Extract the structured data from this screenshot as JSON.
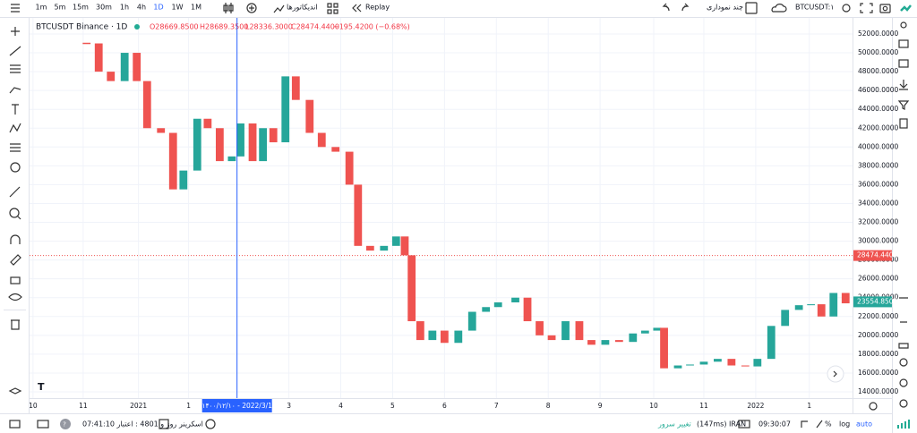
{
  "toolbar": {
    "intervals": [
      "1m",
      "5m",
      "15m",
      "30m",
      "1h",
      "4h",
      "1D",
      "1W",
      "1M"
    ],
    "indicators": "اندیکاتورها",
    "replay": "Replay",
    "multi_chart": "چند نموداری",
    "symbol": "BTCUSDT:۱"
  },
  "chart_data": {
    "type": "candlestick",
    "symbol": "BTCUSDT Binance · 1D",
    "legend": {
      "open": "O28669.8500",
      "high": "H28689.3500",
      "low": "L28336.3000",
      "close": "C28474.4400",
      "change": "−195.4200 (−0.68%)"
    },
    "x": [
      33,
      40,
      47,
      55,
      62,
      68,
      76,
      83,
      89,
      97,
      103,
      110,
      117,
      122,
      129,
      135,
      141,
      148,
      154,
      162,
      169,
      177,
      185,
      190,
      197,
      205,
      212,
      217,
      221,
      226,
      233,
      240,
      248,
      256,
      264,
      271,
      281,
      288,
      295,
      302,
      310,
      318,
      325,
      333,
      341,
      349,
      356,
      363,
      367,
      375,
      382,
      390,
      398,
      406,
      414,
      421,
      429,
      437,
      445,
      452,
      458,
      465,
      472
    ],
    "close": [
      51000,
      48000,
      47000,
      50000,
      47000,
      42000,
      41500,
      35500,
      37500,
      43000,
      42000,
      38500,
      39000,
      42500,
      38500,
      42000,
      40500,
      47500,
      45000,
      41500,
      40000,
      39500,
      36000,
      29500,
      29000,
      29500,
      30500,
      28500,
      21500,
      19500,
      20500,
      19200,
      20500,
      22500,
      23000,
      23500,
      24000,
      21500,
      20000,
      19500,
      21500,
      19500,
      19000,
      19500,
      19300,
      20200,
      20500,
      20800,
      16500,
      16800,
      16900,
      17200,
      17500,
      16800,
      16700,
      17500,
      21000,
      22700,
      23200,
      23300,
      22000,
      24500,
      23400
    ],
    "up_color": "#26a69a",
    "down_color": "#ef5350",
    "xlim": [
      0,
      476
    ],
    "xticks": [
      {
        "value": 2,
        "label": "10"
      },
      {
        "value": 31,
        "label": "11"
      },
      {
        "value": 63,
        "label": "2021"
      },
      {
        "value": 92,
        "label": "1"
      },
      {
        "value": 150,
        "label": "3"
      },
      {
        "value": 180,
        "label": "4"
      },
      {
        "value": 210,
        "label": "5"
      },
      {
        "value": 240,
        "label": "6"
      },
      {
        "value": 270,
        "label": "7"
      },
      {
        "value": 300,
        "label": "8"
      },
      {
        "value": 330,
        "label": "9"
      },
      {
        "value": 361,
        "label": "10"
      },
      {
        "value": 390,
        "label": "11"
      },
      {
        "value": 420,
        "label": "2022"
      },
      {
        "value": 451,
        "label": "1"
      }
    ],
    "ylim": [
      13334,
      53710
    ],
    "yticks": [
      {
        "value": 14000,
        "label": "14000.0000"
      },
      {
        "value": 16000,
        "label": "16000.0000"
      },
      {
        "value": 18000,
        "label": "18000.0000"
      },
      {
        "value": 20000,
        "label": "20000.0000"
      },
      {
        "value": 22000,
        "label": "22000.0000"
      },
      {
        "value": 24000,
        "label": "24000.0000"
      },
      {
        "value": 26000,
        "label": "26000.0000"
      },
      {
        "value": 28000,
        "label": "28000.0000"
      },
      {
        "value": 30000,
        "label": "30000.0000"
      },
      {
        "value": 32000,
        "label": "32000.0000"
      },
      {
        "value": 34000,
        "label": "34000.0000"
      },
      {
        "value": 36000,
        "label": "36000.0000"
      },
      {
        "value": 38000,
        "label": "38000.0000"
      },
      {
        "value": 40000,
        "label": "40000.0000"
      },
      {
        "value": 42000,
        "label": "42000.0000"
      },
      {
        "value": 44000,
        "label": "44000.0000"
      },
      {
        "value": 46000,
        "label": "46000.0000"
      },
      {
        "value": 48000,
        "label": "48000.0000"
      },
      {
        "value": 50000,
        "label": "50000.0000"
      },
      {
        "value": 52000,
        "label": "52000.0000"
      }
    ],
    "crosshair": {
      "value": 120,
      "label": "۱۴۰۰/۱۲/۱۰ - 2022/3/1"
    },
    "last_price": {
      "value": 28474.44,
      "label": "28474.4400"
    },
    "marker_price": {
      "value": 23554.85,
      "label": "23554.8500"
    }
  },
  "status_bar": {
    "credit": "07:41:10 روز و 4801 : اعتبار",
    "screener": "اسکرینر",
    "change_server": "تغییر سرور",
    "server": "(147ms) IRAN",
    "time": "09:30:07",
    "percent": "%",
    "log": "log",
    "auto": "auto"
  }
}
